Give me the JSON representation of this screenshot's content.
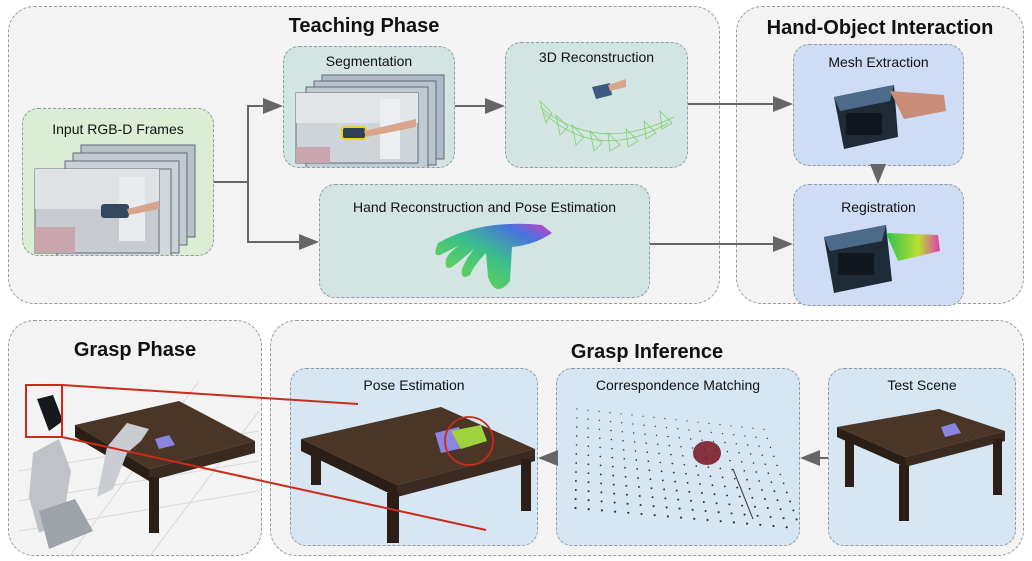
{
  "sections": {
    "teaching": {
      "title": "Teaching Phase"
    },
    "hand_object": {
      "title": "Hand-Object Interaction"
    },
    "grasp_phase": {
      "title": "Grasp Phase"
    },
    "grasp_inference": {
      "title": "Grasp Inference"
    }
  },
  "panels": {
    "input_frames": "Input RGB-D Frames",
    "segmentation": "Segmentation",
    "reconstruction_3d": "3D Reconstruction",
    "hand_reconstruction": "Hand Reconstruction and Pose Estimation",
    "mesh_extraction": "Mesh Extraction",
    "registration": "Registration",
    "pose_estimation": "Pose Estimation",
    "correspondence_matching": "Correspondence Matching",
    "test_scene": "Test Scene"
  },
  "colors": {
    "arrow": "#666666",
    "highlight": "#cc2a1a",
    "green_panel": "#dbeed3",
    "teal_panel": "#d3e5e3",
    "blue_panel": "#cfdcf6"
  }
}
